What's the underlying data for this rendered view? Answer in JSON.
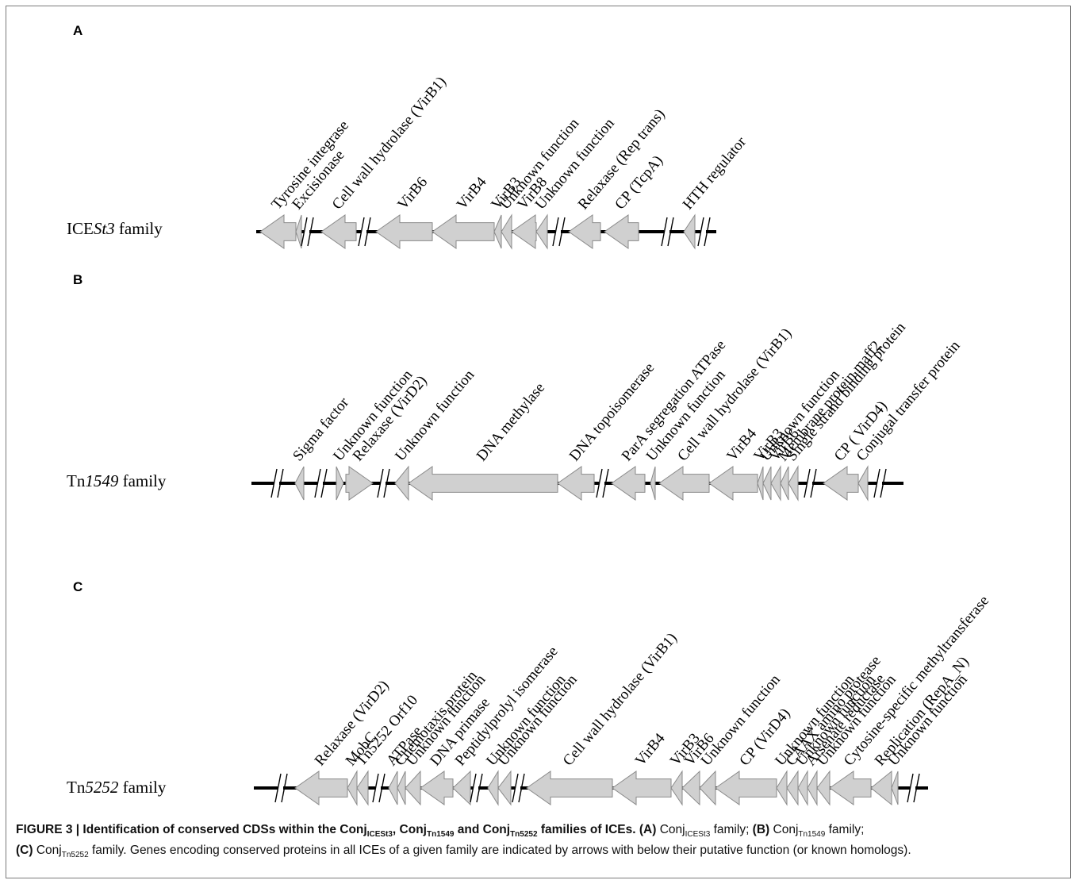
{
  "panels": [
    {
      "letter": "A",
      "family_prefix": "ICE",
      "family_italic": "St3",
      "family_suffix": " family",
      "genes": [
        {
          "label": "Tyrosine integrase",
          "dir": "left"
        },
        {
          "label": "Excisionase",
          "dir": "left"
        },
        {
          "label": "Cell wall hydrolase (VirB1)",
          "dir": "left"
        },
        {
          "label": "VirB6",
          "dir": "left"
        },
        {
          "label": "VirB4",
          "dir": "left"
        },
        {
          "label": "VirB3",
          "dir": "left"
        },
        {
          "label": "Unknown function",
          "dir": "left"
        },
        {
          "label": "VirB8",
          "dir": "left"
        },
        {
          "label": "Unknown function",
          "dir": "left"
        },
        {
          "label": "Relaxase (Rep trans)",
          "dir": "left"
        },
        {
          "label": "CP (TcpA)",
          "dir": "left"
        },
        {
          "label": "HTH regulator",
          "dir": "left"
        }
      ]
    },
    {
      "letter": "B",
      "family_prefix": "Tn",
      "family_italic": "1549",
      "family_suffix": " family",
      "genes": [
        {
          "label": "Sigma factor",
          "dir": "left"
        },
        {
          "label": "Unknown function",
          "dir": "right"
        },
        {
          "label": "Relaxase (VirD2)",
          "dir": "right"
        },
        {
          "label": "Unknown function",
          "dir": "left"
        },
        {
          "label": "DNA methylase",
          "dir": "left"
        },
        {
          "label": "DNA topoisomerase",
          "dir": "left"
        },
        {
          "label": "ParA segregation ATPase",
          "dir": "left"
        },
        {
          "label": "Unknown function",
          "dir": "left"
        },
        {
          "label": "Cell wall hydrolase (VirB1)",
          "dir": "left"
        },
        {
          "label": "VirB4",
          "dir": "left"
        },
        {
          "label": "VirB3",
          "dir": "left"
        },
        {
          "label": "Unknown function",
          "dir": "left"
        },
        {
          "label": "VirB6",
          "dir": "left"
        },
        {
          "label": "Membrane protein maff2",
          "dir": "left"
        },
        {
          "label": "Single strand binding protein",
          "dir": "left"
        },
        {
          "label": "CP ( VirD4)",
          "dir": "left"
        },
        {
          "label": "Conjugal transfer protein",
          "dir": "left"
        }
      ]
    },
    {
      "letter": "C",
      "family_prefix": "Tn",
      "family_italic": "5252",
      "family_suffix": " family",
      "genes": [
        {
          "label": "Relaxase  (VirD2)",
          "dir": "left"
        },
        {
          "label": "MobC",
          "dir": "left"
        },
        {
          "label": "Tn5252 Orf10",
          "dir": "left"
        },
        {
          "label": "ATPase",
          "dir": "left"
        },
        {
          "label": "Chemotaxis protein",
          "dir": "left"
        },
        {
          "label": "Unknown function",
          "dir": "left"
        },
        {
          "label": "DNA primase",
          "dir": "left"
        },
        {
          "label": "Peptidylprolyl isomerase",
          "dir": "left"
        },
        {
          "label": "Unknown function",
          "dir": "left"
        },
        {
          "label": "Unknown function",
          "dir": "left"
        },
        {
          "label": "Cell wall hydrolase  (VirB1)",
          "dir": "left"
        },
        {
          "label": "VirB4",
          "dir": "left"
        },
        {
          "label": "VirB3",
          "dir": "left"
        },
        {
          "label": "VirB6",
          "dir": "left"
        },
        {
          "label": "Unknown function",
          "dir": "left"
        },
        {
          "label": "CP (VirD4)",
          "dir": "left"
        },
        {
          "label": "Unknown function",
          "dir": "left"
        },
        {
          "label": "CAAX amino protease",
          "dir": "left"
        },
        {
          "label": "Unknown function",
          "dir": "left"
        },
        {
          "label": "Arsenate reductase",
          "dir": "left"
        },
        {
          "label": "Unknown function",
          "dir": "left"
        },
        {
          "label": "Cytosine-specific methyltransferase",
          "dir": "left"
        },
        {
          "label": "Replication (RepA_N)",
          "dir": "left"
        },
        {
          "label": "Unknown function",
          "dir": "left"
        }
      ]
    }
  ],
  "caption": {
    "lead_bold": "FIGURE 3 | Identification of conserved CDSs within the Conj",
    "sub1": "ICESt3",
    "sep1": ", Conj",
    "sub2": "Tn1549",
    "sep2": " and Conj",
    "sub3": "Tn5252",
    "tail_bold": " families of ICEs.",
    "a_marker": " (A)",
    "a_text": " Conj",
    "a_sub": "ICESt3",
    "a_tail": " family;",
    "b_marker": " (B)",
    "b_text": " Conj",
    "b_sub": "Tn1549",
    "b_tail": " family;",
    "c_marker": "(C)",
    "c_text": " Conj",
    "c_sub": "Tn5252",
    "c_tail": " family. Genes encoding conserved proteins in all ICEs of a given family are indicated by arrows with below their putative function (or known homologs)."
  }
}
